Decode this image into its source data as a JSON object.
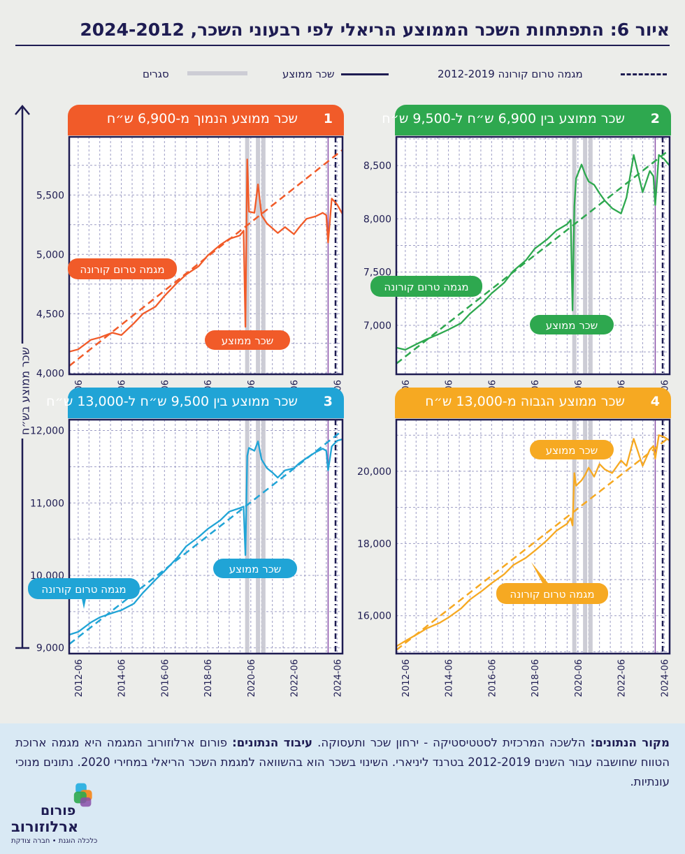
{
  "title": "איור 6: התפתחות השכר הממוצע הריאלי לפי רבעוני השכר, 2024-2012",
  "legend": {
    "trend": "מגמה טרום קורונה 2012-2019",
    "mean": "שכר ממוצע",
    "lockdowns": "סגרים"
  },
  "y_axis_label": "שכר ממוצע בש״ח",
  "colors": {
    "navy": "#1e1c52",
    "q1": "#f15b29",
    "q2": "#2ea84f",
    "q3": "#20a4d6",
    "q4": "#f6a922",
    "lockdown": "#c7c7d0",
    "purple": "#8a4fa8",
    "background": "#ecedea",
    "footer_bg": "#d9e9f4"
  },
  "panels": [
    {
      "num": "1",
      "title": "שכר ממוצע הנמוך מ-6,900 ש״ח",
      "trend_label": "מגמה טרום קורונה",
      "mean_label": "שכר ממוצע"
    },
    {
      "num": "2",
      "title": "שכר ממוצע בין 6,900 ש״ח ל-9,500 ש״ח",
      "trend_label": "מגמה טרום קורונה",
      "mean_label": "שכר ממוצע"
    },
    {
      "num": "3",
      "title": "שכר ממוצע בין 9,500 ש״ח ל-13,000 ש״ח",
      "trend_label": "מגמה טרום קורונה",
      "mean_label": "שכר ממוצע"
    },
    {
      "num": "4",
      "title": "שכר ממוצע הגבוה מ-13,000 ש״ח",
      "trend_label": "מגמה טרום קורונה",
      "mean_label": "שכר ממוצע"
    }
  ],
  "footer": {
    "source_label": "מקור הנתונים:",
    "source_text": "הלשכה המרכזית לסטטיסטיקה - ירחון שכר ותעסוקה.",
    "processing_label": "עיבוד הנתונים:",
    "processing_text": "פורום ארלוזורוב",
    "note": "המגמה היא מגמה ארוכת הטווח שחושבה עבור השנים 2012-2019 בטרנד ליניארי. השינוי בשכר הוא בהשוואה למגמת השכר הריאלי במחירי 2020. נתונים מנוכי עונתיות."
  },
  "logo": {
    "name_line1": "פורום",
    "name_line2": "ארלוזורוב",
    "tagline": "כלכלה הוגנת • חברה צודקת"
  },
  "chart_data": [
    {
      "type": "line",
      "panel": "1",
      "x_ticks": [
        "2012-06",
        "2014-06",
        "2016-06",
        "2018-06",
        "2020-06",
        "2022-06",
        "2024-06"
      ],
      "x_range": [
        "2012-01",
        "2024-09"
      ],
      "y_ticks": [
        "4,000",
        "4,500",
        "5,000",
        "5,500"
      ],
      "ylim": [
        3990,
        5990
      ],
      "lockdowns": [
        "2020-04",
        "2020-10",
        "2021-01"
      ],
      "marker_line": "2024-01",
      "trend": {
        "name": "מגמה טרום קורונה",
        "x": [
          "2012-01",
          "2024-09"
        ],
        "y": [
          4060,
          5880
        ]
      },
      "series": [
        {
          "name": "שכר ממוצע",
          "x": [
            "2012-01",
            "2012-06",
            "2013-01",
            "2013-06",
            "2014-01",
            "2014-06",
            "2015-01",
            "2015-06",
            "2016-01",
            "2016-06",
            "2017-01",
            "2017-06",
            "2018-01",
            "2018-06",
            "2019-01",
            "2019-06",
            "2019-12",
            "2020-02",
            "2020-03",
            "2020-04",
            "2020-05",
            "2020-08",
            "2020-10",
            "2020-12",
            "2021-03",
            "2021-06",
            "2021-09",
            "2022-01",
            "2022-06",
            "2022-09",
            "2023-01",
            "2023-06",
            "2023-10",
            "2023-12",
            "2024-01",
            "2024-03",
            "2024-06",
            "2024-09"
          ],
          "values": [
            4180,
            4200,
            4280,
            4300,
            4340,
            4320,
            4420,
            4500,
            4560,
            4650,
            4760,
            4830,
            4900,
            4990,
            5080,
            5130,
            5160,
            5200,
            4390,
            5800,
            5360,
            5350,
            5590,
            5330,
            5260,
            5220,
            5180,
            5230,
            5170,
            5230,
            5300,
            5320,
            5350,
            5330,
            5100,
            5470,
            5420,
            5340
          ]
        }
      ]
    },
    {
      "type": "line",
      "panel": "2",
      "x_ticks": [
        "2012-06",
        "2014-06",
        "2016-06",
        "2018-06",
        "2020-06",
        "2022-06",
        "2024-06"
      ],
      "x_range": [
        "2012-01",
        "2024-09"
      ],
      "y_ticks": [
        "7,000",
        "7,500",
        "8,000",
        "8,500"
      ],
      "ylim": [
        6540,
        8770
      ],
      "lockdowns": [
        "2020-04",
        "2020-10",
        "2021-01"
      ],
      "marker_line": "2024-01",
      "trend": {
        "name": "מגמה טרום קורונה",
        "x": [
          "2012-01",
          "2024-09"
        ],
        "y": [
          6640,
          8650
        ]
      },
      "series": [
        {
          "name": "שכר ממוצע",
          "x": [
            "2012-01",
            "2012-06",
            "2013-01",
            "2013-06",
            "2014-01",
            "2014-06",
            "2015-01",
            "2015-06",
            "2016-01",
            "2016-06",
            "2017-01",
            "2017-06",
            "2018-01",
            "2018-06",
            "2019-01",
            "2019-06",
            "2019-12",
            "2020-02",
            "2020-03",
            "2020-04",
            "2020-05",
            "2020-08",
            "2020-10",
            "2020-12",
            "2021-03",
            "2021-06",
            "2021-09",
            "2022-01",
            "2022-06",
            "2022-09",
            "2023-01",
            "2023-06",
            "2023-10",
            "2023-12",
            "2024-01",
            "2024-03",
            "2024-06",
            "2024-09"
          ],
          "values": [
            6790,
            6770,
            6830,
            6870,
            6920,
            6960,
            7020,
            7110,
            7210,
            7300,
            7400,
            7510,
            7610,
            7720,
            7810,
            7890,
            7950,
            7990,
            7140,
            8120,
            8380,
            8510,
            8420,
            8350,
            8320,
            8240,
            8170,
            8100,
            8050,
            8200,
            8600,
            8250,
            8450,
            8400,
            8130,
            8600,
            8560,
            8500
          ]
        }
      ]
    },
    {
      "type": "line",
      "panel": "3",
      "x_ticks": [
        "2012-06",
        "2014-06",
        "2016-06",
        "2018-06",
        "2020-06",
        "2022-06",
        "2024-06"
      ],
      "x_range": [
        "2012-01",
        "2024-09"
      ],
      "y_ticks": [
        "9,000",
        "10,000",
        "11,000",
        "12,000"
      ],
      "ylim": [
        8920,
        12150
      ],
      "lockdowns": [
        "2020-04",
        "2020-10",
        "2021-01"
      ],
      "marker_line": "2024-01",
      "trend": {
        "name": "מגמה טרום קורונה",
        "x": [
          "2012-01",
          "2024-09"
        ],
        "y": [
          9050,
          12000
        ]
      },
      "series": [
        {
          "name": "שכר ממוצע",
          "x": [
            "2012-01",
            "2012-06",
            "2013-01",
            "2013-06",
            "2014-01",
            "2014-06",
            "2015-01",
            "2015-06",
            "2016-01",
            "2016-06",
            "2017-01",
            "2017-06",
            "2018-01",
            "2018-06",
            "2019-01",
            "2019-06",
            "2019-12",
            "2020-02",
            "2020-03",
            "2020-04",
            "2020-05",
            "2020-08",
            "2020-10",
            "2020-12",
            "2021-03",
            "2021-06",
            "2021-09",
            "2022-01",
            "2022-06",
            "2022-09",
            "2023-01",
            "2023-06",
            "2023-10",
            "2023-12",
            "2024-01",
            "2024-03",
            "2024-06",
            "2024-09"
          ],
          "values": [
            9180,
            9220,
            9350,
            9420,
            9480,
            9520,
            9610,
            9760,
            9940,
            10060,
            10240,
            10400,
            10530,
            10640,
            10760,
            10880,
            10930,
            10950,
            10280,
            11650,
            11760,
            11720,
            11850,
            11600,
            11480,
            11420,
            11350,
            11450,
            11480,
            11550,
            11620,
            11700,
            11750,
            11720,
            11450,
            11780,
            11860,
            11880
          ]
        }
      ]
    },
    {
      "type": "line",
      "panel": "4",
      "x_ticks": [
        "2012-06",
        "2014-06",
        "2016-06",
        "2018-06",
        "2020-06",
        "2022-06",
        "2024-06"
      ],
      "x_range": [
        "2012-01",
        "2024-09"
      ],
      "y_ticks": [
        "16,000",
        "18,000",
        "20,000"
      ],
      "ylim": [
        14950,
        21430
      ],
      "lockdowns": [
        "2020-04",
        "2020-10",
        "2021-01"
      ],
      "marker_line": "2024-01",
      "trend": {
        "name": "מגמה טרום קורונה",
        "x": [
          "2012-01",
          "2024-09"
        ],
        "y": [
          15050,
          20950
        ]
      },
      "series": [
        {
          "name": "שכר ממוצע",
          "x": [
            "2012-01",
            "2012-06",
            "2013-01",
            "2013-06",
            "2014-01",
            "2014-06",
            "2015-01",
            "2015-06",
            "2016-01",
            "2016-06",
            "2017-01",
            "2017-06",
            "2018-01",
            "2018-06",
            "2019-01",
            "2019-06",
            "2019-12",
            "2020-02",
            "2020-03",
            "2020-04",
            "2020-05",
            "2020-08",
            "2020-10",
            "2020-12",
            "2021-03",
            "2021-06",
            "2021-09",
            "2022-01",
            "2022-06",
            "2022-09",
            "2023-01",
            "2023-06",
            "2023-10",
            "2023-12",
            "2024-01",
            "2024-03",
            "2024-06",
            "2024-09"
          ],
          "values": [
            15150,
            15300,
            15500,
            15650,
            15800,
            15950,
            16200,
            16450,
            16700,
            16900,
            17150,
            17400,
            17600,
            17800,
            18100,
            18350,
            18550,
            18700,
            18500,
            19950,
            19600,
            19750,
            19900,
            20100,
            19850,
            20200,
            20050,
            19950,
            20300,
            20150,
            20900,
            20150,
            20600,
            20700,
            20350,
            21000,
            20950,
            20850
          ]
        }
      ]
    }
  ]
}
